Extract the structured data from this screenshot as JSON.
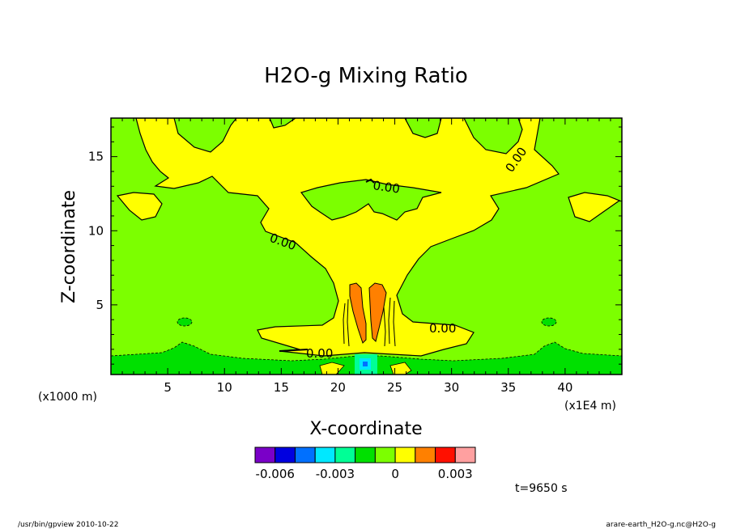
{
  "chart_data": {
    "type": "contour",
    "title": "H2O-g Mixing Ratio",
    "xlabel": "X-coordinate",
    "ylabel": "Z-coordinate",
    "x_unit_left": "(x1000 m)",
    "x_unit_right": "(x1E4 m)",
    "x_ticks": [
      "5",
      "10",
      "15",
      "20",
      "25",
      "30",
      "35",
      "40"
    ],
    "x_tick_values": [
      5,
      10,
      15,
      20,
      25,
      30,
      35,
      40
    ],
    "y_ticks": [
      "5",
      "10",
      "15"
    ],
    "y_tick_values": [
      5,
      10,
      15
    ],
    "xlim": [
      0,
      45
    ],
    "ylim": [
      0.3,
      17.6
    ],
    "contour_labels": [
      "0.00",
      "0.00",
      "0.00",
      "0.00",
      "0.00"
    ],
    "colorbar": {
      "tick_labels": [
        "-0.006",
        "-0.003",
        "0",
        "0.003"
      ],
      "tick_values": [
        -0.006,
        -0.003,
        0,
        0.003
      ],
      "levels": [
        -0.007,
        -0.006,
        -0.005,
        -0.004,
        -0.003,
        -0.002,
        -0.001,
        0,
        0.001,
        0.002,
        0.003,
        0.004
      ],
      "colors": [
        "#7a00c8",
        "#0000e0",
        "#0070ff",
        "#00e8ff",
        "#00ff96",
        "#00e000",
        "#7cff00",
        "#ffff00",
        "#ff8000",
        "#ff1000",
        "#ffa0a0"
      ]
    },
    "time_label": "t=9650 s",
    "footer_left": "/usr/bin/gpview  2010-10-22",
    "footer_right": "arare-earth_H2O-g.nc@H2O-g",
    "field_colors": {
      "background": "#7cff00",
      "positive": "#ffff00",
      "core": "#ff8000",
      "negative": "#00e000",
      "strong_negative": "#00ff96"
    }
  }
}
